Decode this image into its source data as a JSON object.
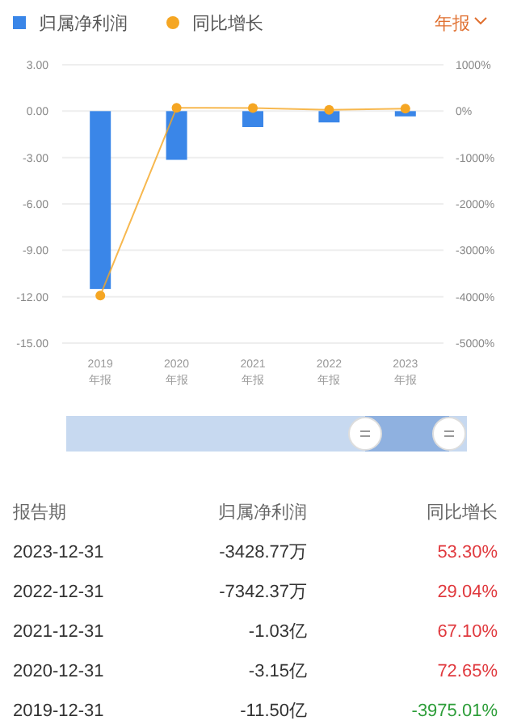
{
  "chart_data": {
    "type": "bar",
    "categories": [
      "2019\n年报",
      "2020\n年报",
      "2021\n年报",
      "2022\n年报",
      "2023\n年报"
    ],
    "series": [
      {
        "name": "归属净利润",
        "color": "#3a86e8",
        "values": [
          -11.5,
          -3.15,
          -1.03,
          -0.73,
          -0.34
        ]
      },
      {
        "name": "同比增长",
        "type": "line",
        "axis": "y2",
        "color": "#f5a623",
        "marker": "circle",
        "values": [
          -3975,
          73,
          67,
          29,
          53
        ]
      }
    ],
    "ylim": [
      -15,
      3
    ],
    "yticks": [
      {
        "value": 3,
        "label": "3.00"
      },
      {
        "value": 0,
        "label": "0.00"
      },
      {
        "value": -3,
        "label": "-3.00"
      },
      {
        "value": -6,
        "label": "-6.00"
      },
      {
        "value": -9,
        "label": "-9.00"
      },
      {
        "value": -12,
        "label": "-12.00"
      },
      {
        "value": -15,
        "label": "-15.00"
      }
    ],
    "y2lim": [
      -5000,
      1000
    ],
    "y2ticks": [
      {
        "value": 1000,
        "label": "1000%"
      },
      {
        "value": 0,
        "label": "0%"
      },
      {
        "value": -1000,
        "label": "-1000%"
      },
      {
        "value": -2000,
        "label": "-2000%"
      },
      {
        "value": -3000,
        "label": "-3000%"
      },
      {
        "value": -4000,
        "label": "-4000%"
      },
      {
        "value": -5000,
        "label": "-5000%"
      }
    ],
    "grid": "y",
    "legend": "top left",
    "annotations": [
      "年报",
      "报告期",
      "归属净利润",
      "同比增长",
      "2023-12-31",
      "-3428.77万",
      "53.30%",
      "2022-12-31",
      "-7342.37万",
      "29.04%",
      "2021-12-31",
      "-1.03亿",
      "67.10%",
      "2020-12-31",
      "-3.15亿",
      "72.65%",
      "2019-12-31",
      "-11.50亿",
      "-3975.01%"
    ]
  }
}
